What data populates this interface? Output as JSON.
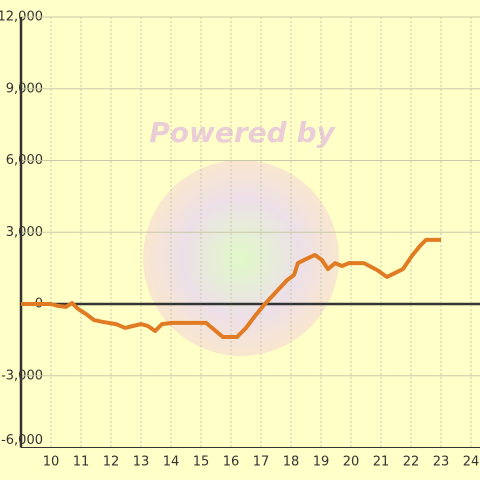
{
  "chart_data": {
    "type": "line",
    "watermark": "Powered by",
    "x": [
      9,
      10,
      10.23,
      10.5,
      10.7,
      10.9,
      11.17,
      11.43,
      11.73,
      12.17,
      12.47,
      12.73,
      13,
      13.23,
      13.47,
      13.7,
      14.03,
      14.47,
      15.17,
      15.73,
      16.2,
      16.5,
      16.8,
      17.1,
      17.47,
      17.87,
      18.1,
      18.23,
      18.57,
      18.8,
      19.03,
      19.23,
      19.47,
      19.7,
      19.93,
      20.43,
      20.87,
      21.2,
      21.47,
      21.73,
      22.03,
      22.3,
      22.5,
      23
    ],
    "series": [
      {
        "color": "#e07b24",
        "values": [
          0,
          0,
          -80,
          -120,
          40,
          -200,
          -420,
          -670,
          -750,
          -840,
          -1000,
          -920,
          -840,
          -920,
          -1130,
          -840,
          -790,
          -790,
          -790,
          -1380,
          -1380,
          -1000,
          -500,
          -40,
          460,
          1000,
          1210,
          1710,
          1920,
          2050,
          1840,
          1460,
          1710,
          1590,
          1710,
          1710,
          1420,
          1130,
          1300,
          1460,
          2010,
          2430,
          2680,
          2680
        ]
      }
    ],
    "xlim": [
      9,
      24.3
    ],
    "xticks": [
      10,
      11,
      12,
      13,
      14,
      15,
      16,
      17,
      18,
      19,
      20,
      21,
      22,
      23,
      24
    ],
    "ylim": [
      -6000,
      12000
    ],
    "yticks": [
      {
        "value": -6000,
        "label": "-6,000"
      },
      {
        "value": -3000,
        "label": "-3,000"
      },
      0,
      {
        "value": 3000,
        "label": "3,000"
      },
      {
        "value": 6000,
        "label": "6,000"
      },
      {
        "value": 9000,
        "label": "9,000"
      },
      {
        "value": 12000,
        "label": "12,000"
      }
    ],
    "grid": true
  }
}
